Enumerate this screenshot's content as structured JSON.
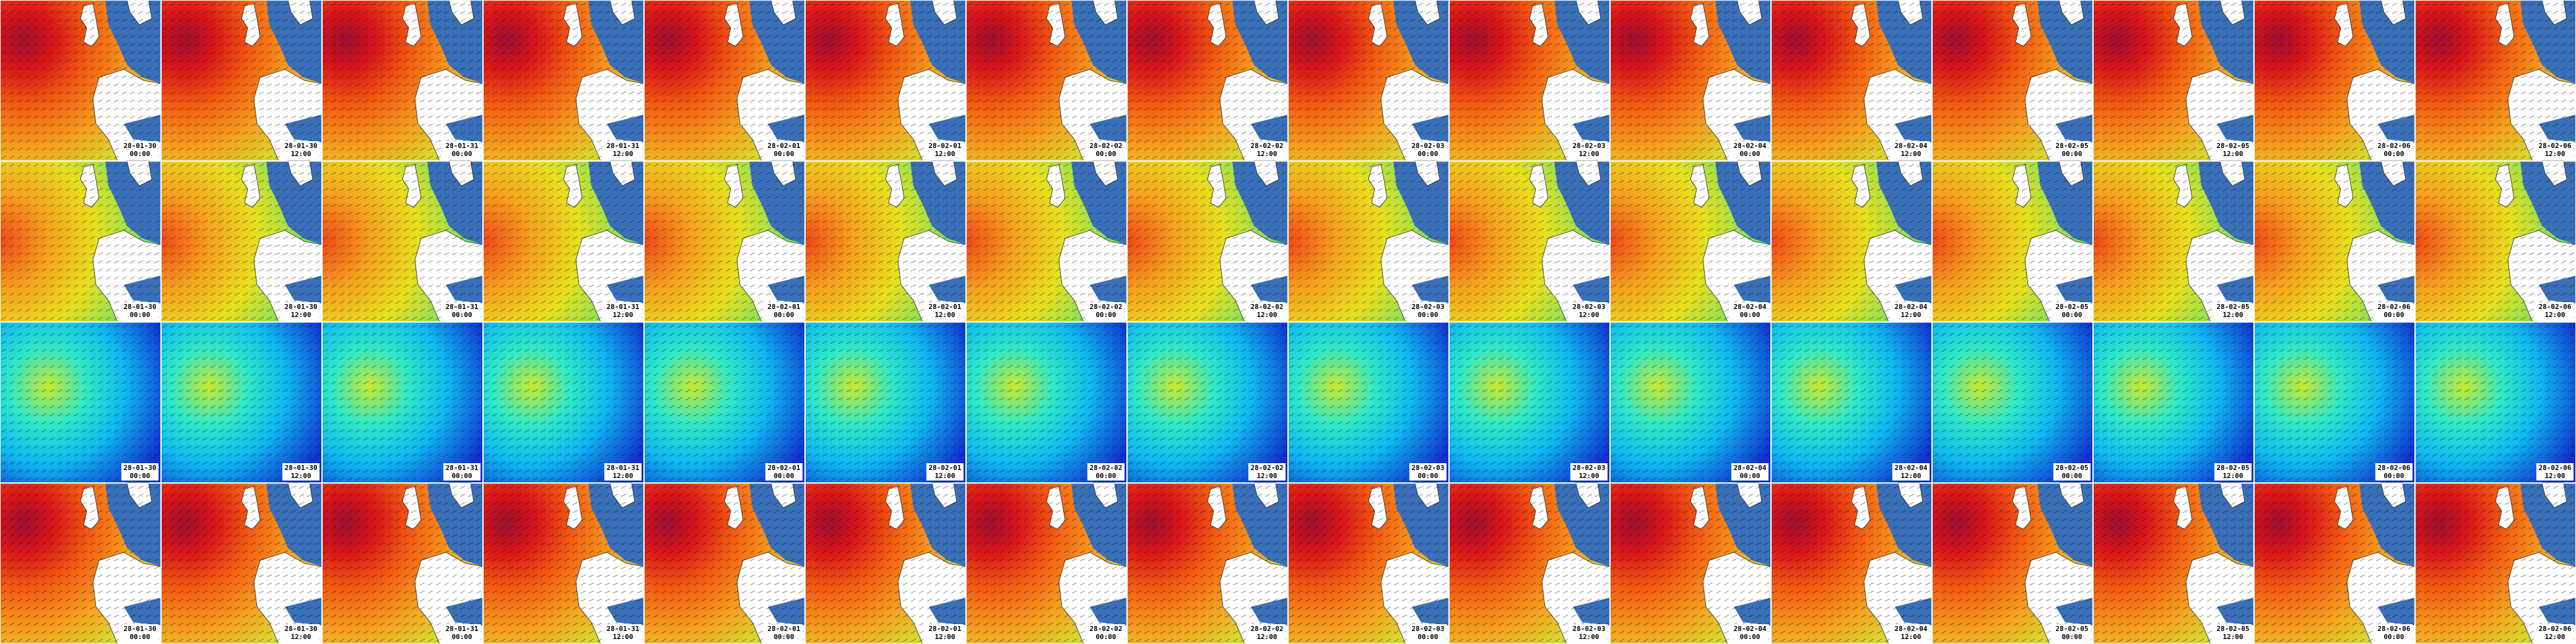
{
  "columns": [
    {
      "date": "28-01-30",
      "time": "00:00"
    },
    {
      "date": "28-01-30",
      "time": "12:00"
    },
    {
      "date": "28-01-31",
      "time": "00:00"
    },
    {
      "date": "28-01-31",
      "time": "12:00"
    },
    {
      "date": "28-02-01",
      "time": "00:00"
    },
    {
      "date": "28-02-01",
      "time": "12:00"
    },
    {
      "date": "28-02-02",
      "time": "00:00"
    },
    {
      "date": "28-02-02",
      "time": "12:00"
    },
    {
      "date": "28-02-03",
      "time": "00:00"
    },
    {
      "date": "28-02-03",
      "time": "12:00"
    },
    {
      "date": "28-02-04",
      "time": "00:00"
    },
    {
      "date": "28-02-04",
      "time": "12:00"
    },
    {
      "date": "28-02-05",
      "time": "00:00"
    },
    {
      "date": "28-02-05",
      "time": "12:00"
    },
    {
      "date": "28-02-06",
      "time": "00:00"
    },
    {
      "date": "28-02-06",
      "time": "12:00"
    }
  ]
}
